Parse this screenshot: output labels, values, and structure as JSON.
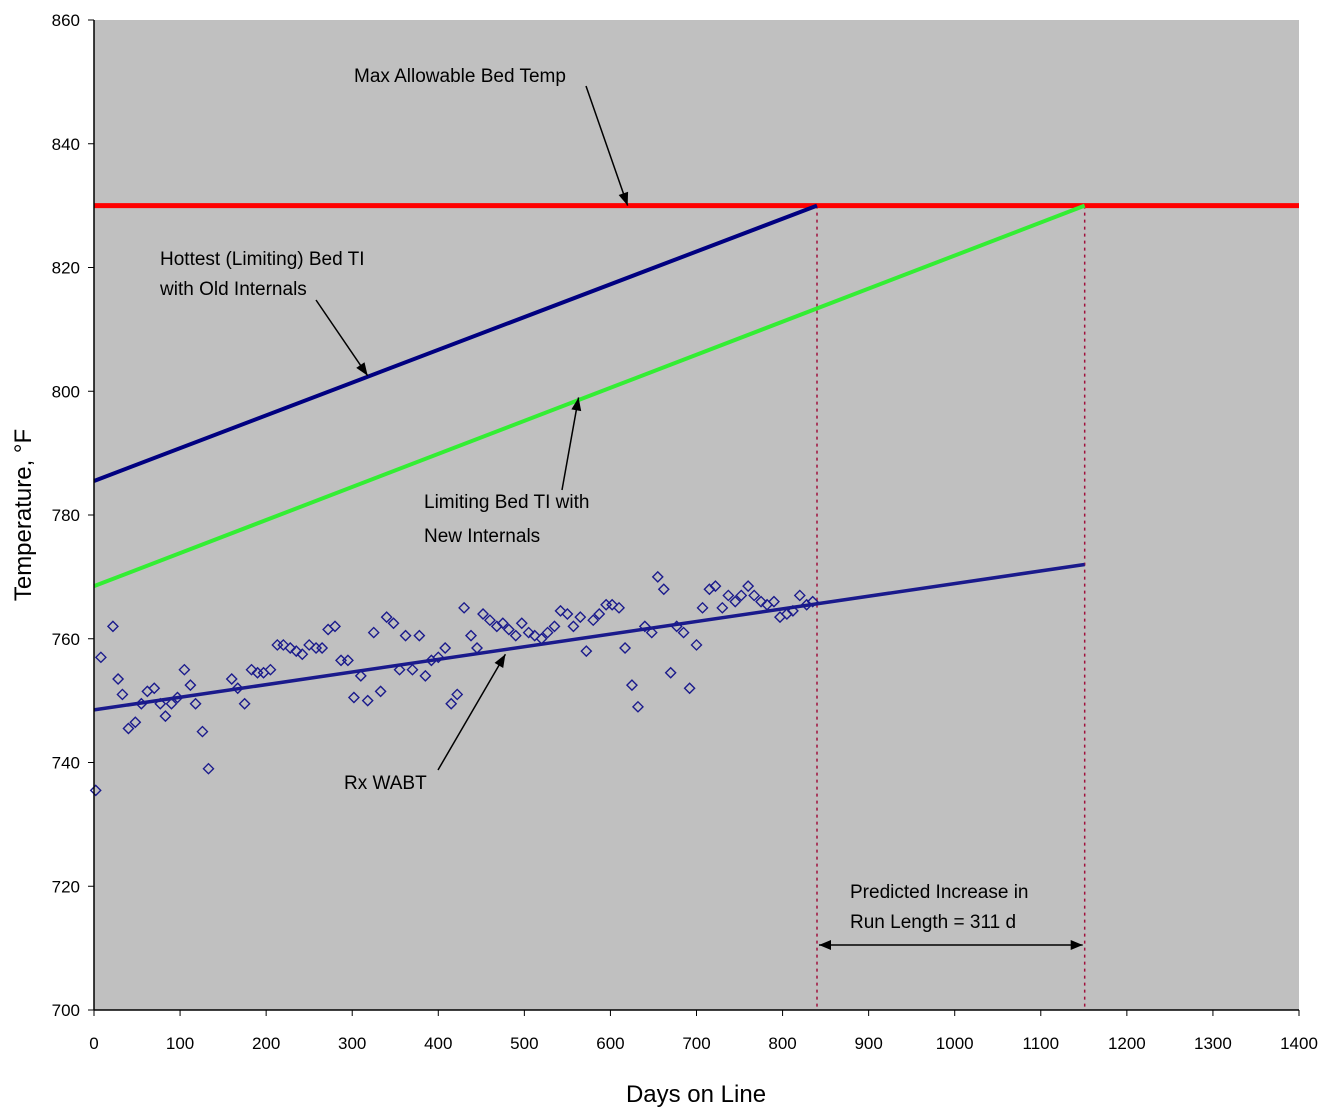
{
  "chart_data": {
    "type": "line",
    "title": "",
    "xlabel": "Days on Line",
    "ylabel": "Temperature, °F",
    "xlim": [
      0,
      1400
    ],
    "ylim": [
      700,
      860
    ],
    "x_ticks": [
      0,
      100,
      200,
      300,
      400,
      500,
      600,
      700,
      800,
      900,
      1000,
      1100,
      1200,
      1300,
      1400
    ],
    "y_ticks": [
      700,
      720,
      740,
      760,
      780,
      800,
      820,
      840,
      860
    ],
    "grid": false,
    "legend": "none",
    "colors": {
      "plot_bg": "#c0c0c0",
      "max_temp": "#ff0000",
      "old_internals": "#000080",
      "new_internals": "#33ee33",
      "wabt": "#1a1a8c",
      "vline": "#a0103c"
    },
    "series": [
      {
        "key": "max_temp",
        "x": [
          0,
          1400
        ],
        "y": [
          830,
          830
        ]
      },
      {
        "key": "old_internals",
        "x": [
          0,
          840
        ],
        "y": [
          785.5,
          830
        ]
      },
      {
        "key": "new_internals",
        "x": [
          0,
          1151
        ],
        "y": [
          768.5,
          830
        ]
      },
      {
        "key": "wabt_trend",
        "x": [
          0,
          1151
        ],
        "y": [
          748.5,
          772
        ]
      },
      {
        "key": "wabt_points",
        "type": "scatter",
        "x": [
          2,
          8,
          22,
          28,
          33,
          40,
          48,
          55,
          62,
          70,
          77,
          83,
          90,
          97,
          105,
          112,
          118,
          126,
          133,
          160,
          167,
          175,
          183,
          190,
          197,
          205,
          213,
          220,
          228,
          235,
          242,
          250,
          258,
          265,
          272,
          280,
          287,
          295,
          302,
          310,
          318,
          325,
          333,
          340,
          348,
          355,
          362,
          370,
          378,
          385,
          392,
          400,
          408,
          415,
          422,
          430,
          438,
          445,
          452,
          460,
          468,
          475,
          482,
          490,
          497,
          505,
          512,
          520,
          527,
          535,
          542,
          550,
          557,
          565,
          572,
          580,
          587,
          595,
          602,
          610,
          617,
          625,
          632,
          640,
          648,
          655,
          662,
          670,
          677,
          685,
          692,
          700,
          707,
          715,
          722,
          730,
          737,
          745,
          752,
          760,
          767,
          775,
          782,
          790,
          797,
          805,
          812,
          820,
          828,
          835
        ],
        "y": [
          735.5,
          757,
          762,
          753.5,
          751,
          745.5,
          746.5,
          749.5,
          751.5,
          752,
          749.5,
          747.5,
          749.5,
          750.5,
          755,
          752.5,
          749.5,
          745,
          739,
          753.5,
          752,
          749.5,
          755,
          754.5,
          754.5,
          755,
          759,
          759,
          758.5,
          758,
          757.5,
          759,
          758.5,
          758.5,
          761.5,
          762,
          756.5,
          756.5,
          750.5,
          754,
          750,
          761,
          751.5,
          763.5,
          762.5,
          755,
          760.5,
          755,
          760.5,
          754,
          756.5,
          757,
          758.5,
          749.5,
          751,
          765,
          760.5,
          758.5,
          764,
          763,
          762,
          762.5,
          761.5,
          760.5,
          762.5,
          761,
          760.5,
          760,
          761,
          762,
          764.5,
          764,
          762,
          763.5,
          758,
          763,
          764,
          765.5,
          765.5,
          765,
          758.5,
          752.5,
          749,
          762,
          761,
          770,
          768,
          754.5,
          762,
          761,
          752,
          759,
          765,
          768,
          768.5,
          765,
          767,
          766,
          767,
          768.5,
          767,
          766,
          765.5,
          766,
          763.5,
          764,
          764.5,
          767,
          765.5,
          766
        ]
      }
    ],
    "annotations": {
      "max_temp": "Max Allowable Bed Temp",
      "old_internals": [
        "Hottest (Limiting) Bed TI",
        "with Old Internals"
      ],
      "new_internals": [
        "Limiting Bed TI with",
        "New Internals"
      ],
      "wabt": "Rx WABT",
      "run_length": [
        "Predicted Increase in",
        "Run Length = 311 d"
      ]
    },
    "vlines": [
      840,
      1151
    ]
  }
}
